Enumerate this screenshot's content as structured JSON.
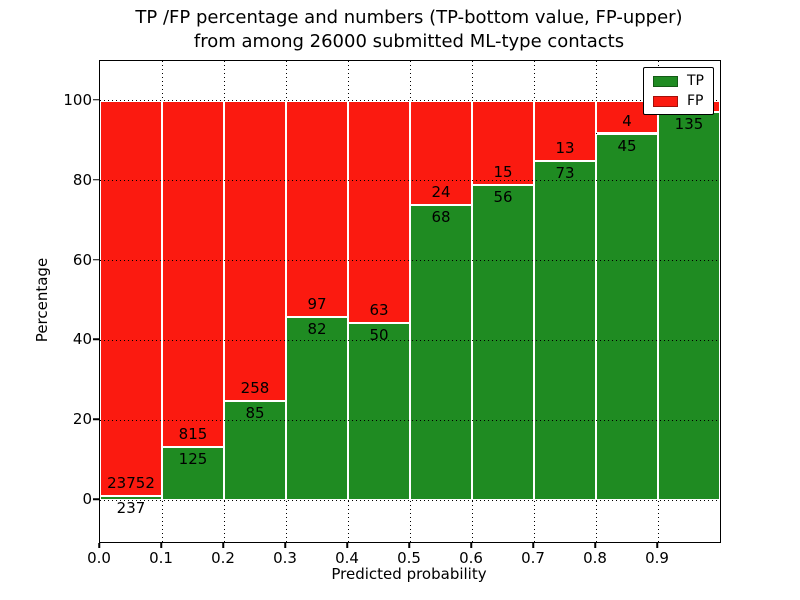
{
  "figure": {
    "title_line1": "TP /FP percentage and numbers (TP-bottom value, FP-upper)",
    "title_line2": "from among 26000 submitted ML-type contacts",
    "xlabel": "Predicted probability",
    "ylabel": "Percentage"
  },
  "legend": {
    "position": "upper-right",
    "items": [
      {
        "label": "TP",
        "color": "#1f8b22"
      },
      {
        "label": "FP",
        "color": "#fb1a10"
      }
    ]
  },
  "chart_data": {
    "type": "bar",
    "variant": "stacked-100-percent",
    "title": "TP /FP percentage and numbers (TP-bottom value, FP-upper) from among 26000 submitted ML-type contacts",
    "xlabel": "Predicted probability",
    "ylabel": "Percentage",
    "xlim": [
      0.0,
      1.0
    ],
    "ylim": [
      -10.5,
      110.0
    ],
    "xticks": [
      "0.0",
      "0.1",
      "0.2",
      "0.3",
      "0.4",
      "0.5",
      "0.6",
      "0.7",
      "0.8",
      "0.9"
    ],
    "yticks": [
      0,
      20,
      40,
      60,
      80,
      100
    ],
    "grid": "dotted",
    "bar_bin_width": 0.1,
    "colors": {
      "tp": "#1f8b22",
      "fp": "#fb1a10",
      "bar_edge": "#ffffff",
      "label_text": "#000000"
    },
    "categories": [
      "0.0-0.1",
      "0.1-0.2",
      "0.2-0.3",
      "0.3-0.4",
      "0.4-0.5",
      "0.5-0.6",
      "0.6-0.7",
      "0.7-0.8",
      "0.8-0.9",
      "0.9-1.0"
    ],
    "series": [
      {
        "name": "TP",
        "color": "#1f8b22",
        "values": [
          237,
          125,
          85,
          82,
          50,
          68,
          56,
          73,
          45,
          135
        ]
      },
      {
        "name": "FP",
        "color": "#fb1a10",
        "values": [
          23752,
          815,
          258,
          97,
          63,
          24,
          15,
          13,
          4,
          4
        ]
      }
    ],
    "bins": [
      {
        "range": "0.0-0.1",
        "tp": 237,
        "fp": 23752,
        "fp_label_visible": true
      },
      {
        "range": "0.1-0.2",
        "tp": 125,
        "fp": 815,
        "fp_label_visible": true
      },
      {
        "range": "0.2-0.3",
        "tp": 85,
        "fp": 258,
        "fp_label_visible": true
      },
      {
        "range": "0.3-0.4",
        "tp": 82,
        "fp": 97,
        "fp_label_visible": true
      },
      {
        "range": "0.4-0.5",
        "tp": 50,
        "fp": 63,
        "fp_label_visible": true
      },
      {
        "range": "0.5-0.6",
        "tp": 68,
        "fp": 24,
        "fp_label_visible": true
      },
      {
        "range": "0.6-0.7",
        "tp": 56,
        "fp": 15,
        "fp_label_visible": true
      },
      {
        "range": "0.7-0.8",
        "tp": 73,
        "fp": 13,
        "fp_label_visible": true
      },
      {
        "range": "0.8-0.9",
        "tp": 45,
        "fp": 4,
        "fp_label_visible": true
      },
      {
        "range": "0.9-1.0",
        "tp": 135,
        "fp": 4,
        "fp_label_visible": false,
        "fp_estimated": true
      }
    ]
  }
}
